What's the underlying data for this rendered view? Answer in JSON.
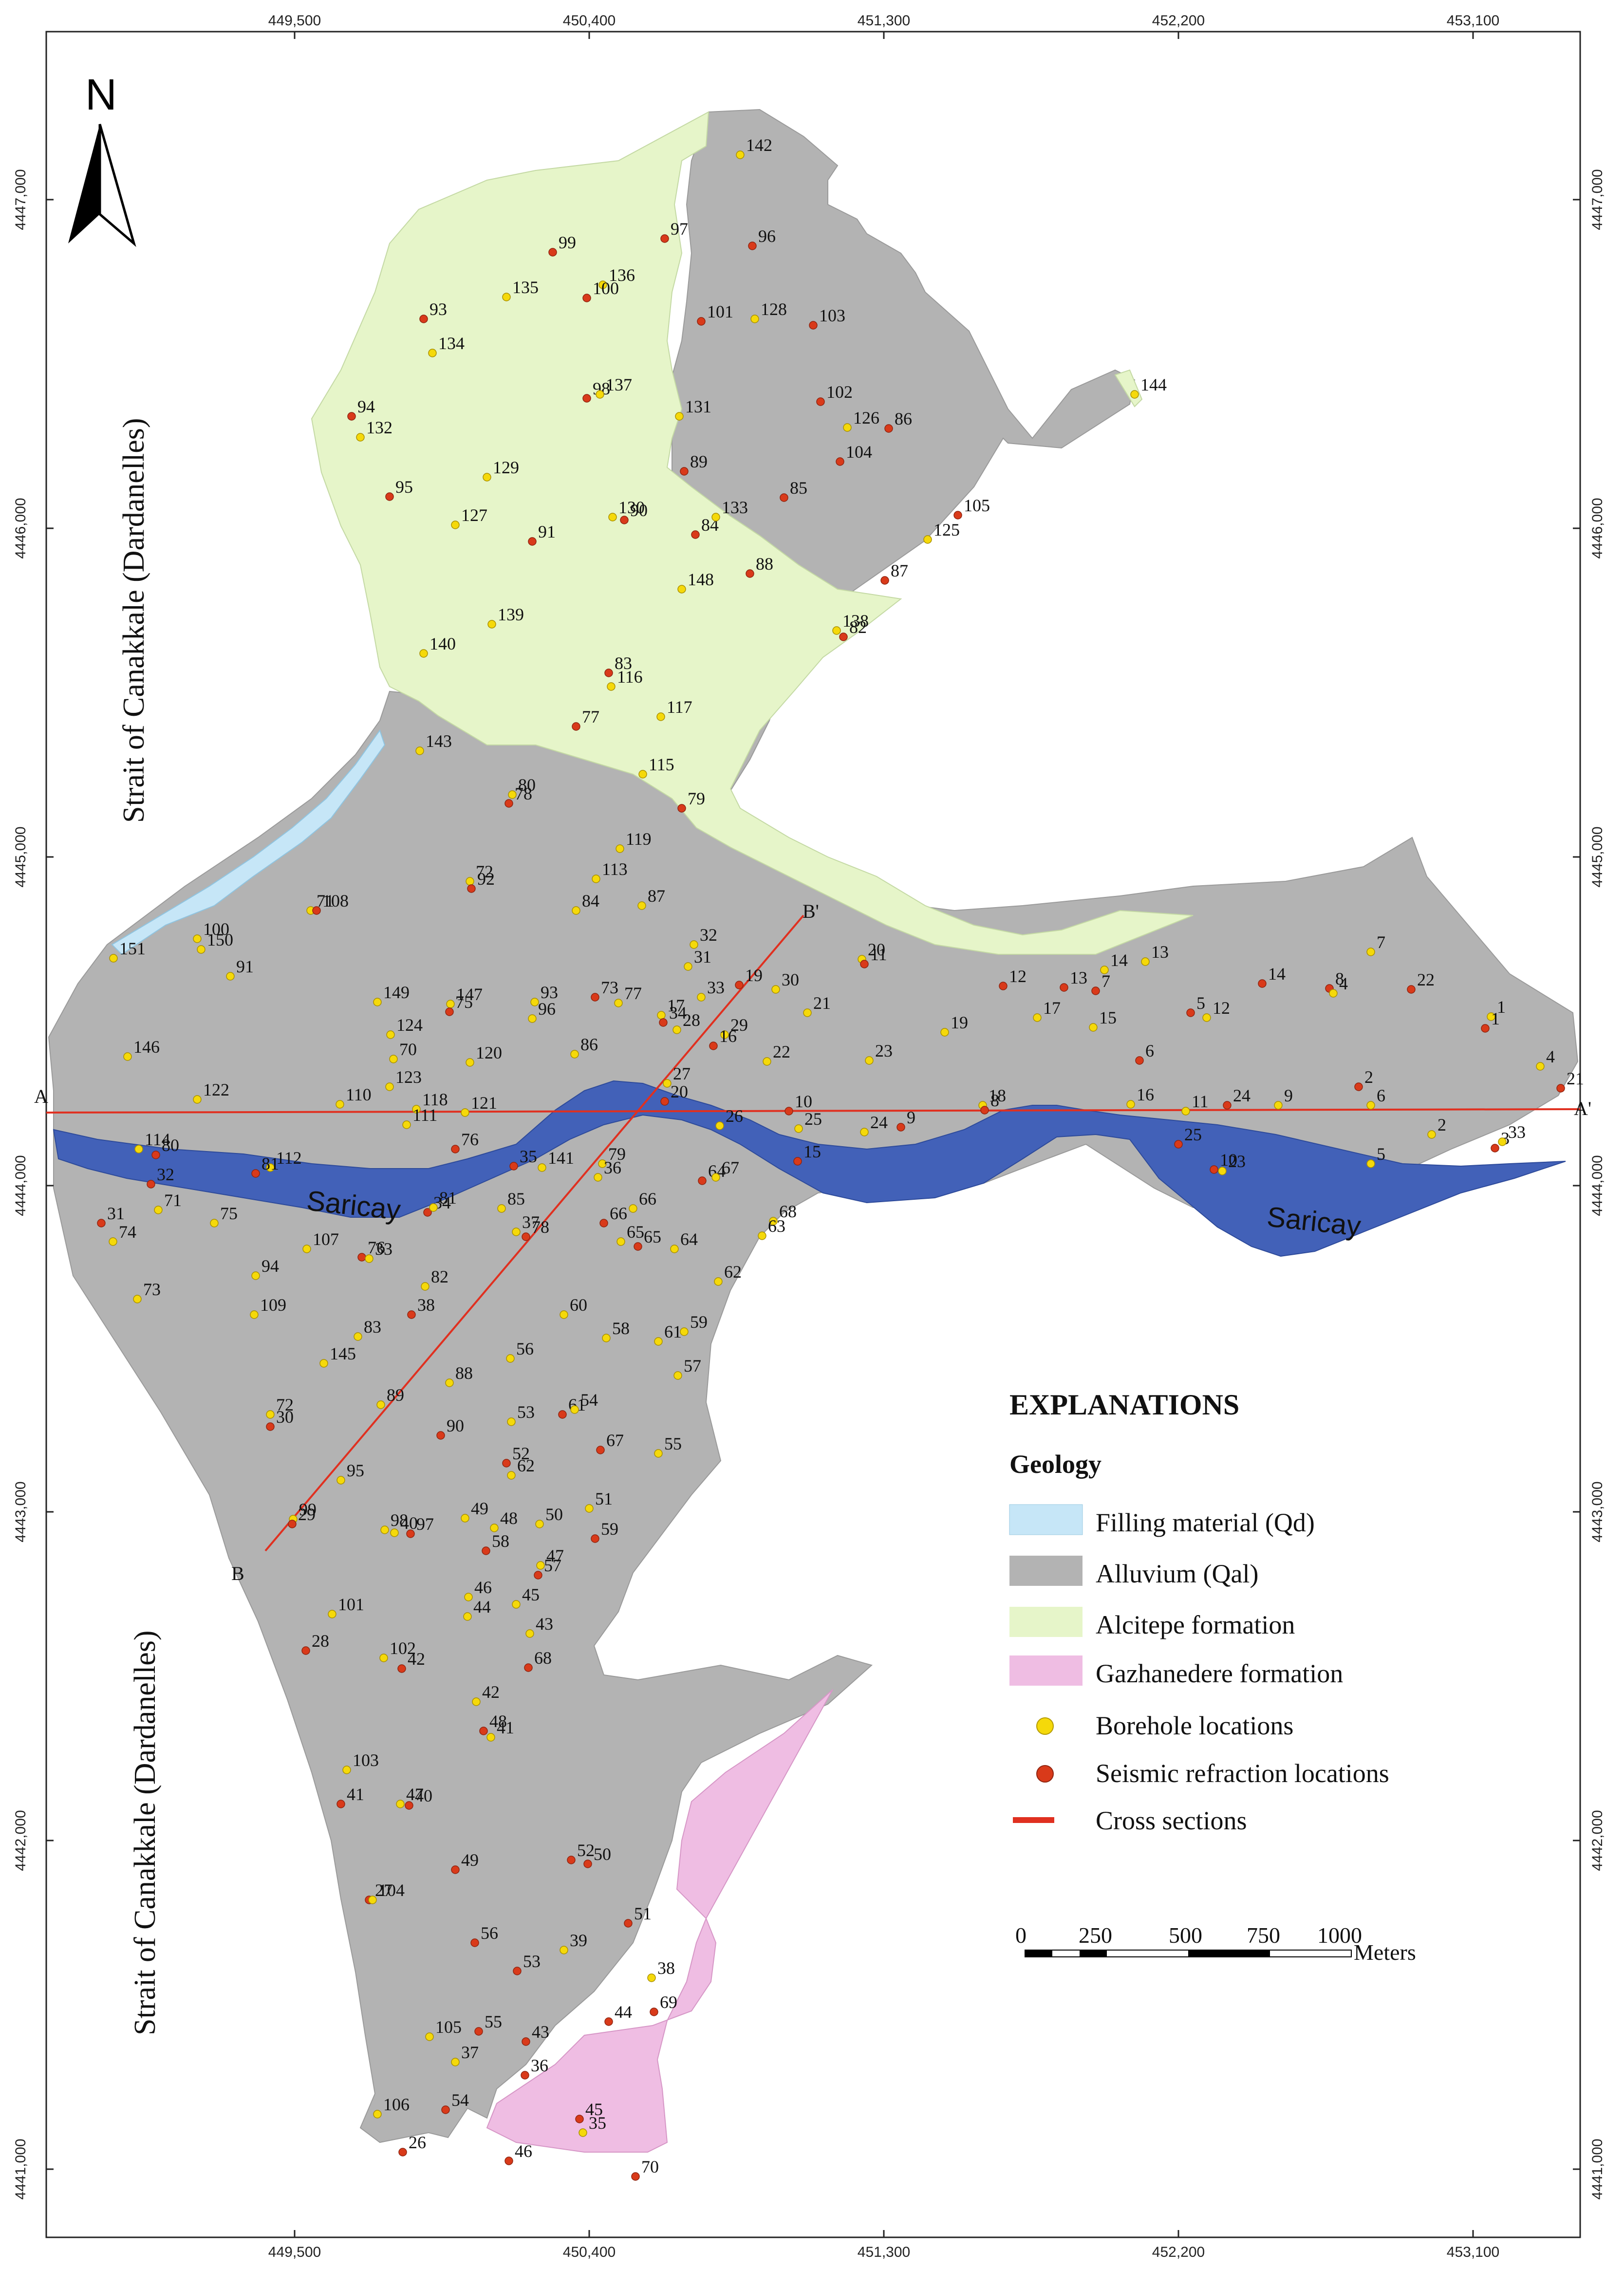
{
  "map": {
    "north_label": "N",
    "x_ticks": [
      "449,500",
      "450,400",
      "451,300",
      "452,200",
      "453,100"
    ],
    "y_ticks": [
      "4447,000",
      "4446,000",
      "4445,000",
      "4444,000",
      "4443,000",
      "4442,000",
      "4441,000"
    ],
    "sea_label_north": "Strait of Canakkale (Dardanelles)",
    "sea_label_south": "Strait of Canakkale (Dardanelles)",
    "river_label_west": "Saricay",
    "river_label_east": "Saricay",
    "sections": {
      "a": "A",
      "a_prime": "A'",
      "b": "B",
      "b_prime": "B'"
    },
    "colors": {
      "filling": "#c6e6f7",
      "alluvium": "#b3b3b3",
      "alcitepe": "#e6f5c9",
      "gazhanedere": "#efbde3",
      "river": "#4261b8",
      "borehole": "#f5d90a",
      "seismic": "#d93a1a",
      "section_line": "#e03020"
    },
    "legend": {
      "title": "EXPLANATIONS",
      "subtitle": "Geology",
      "items": [
        {
          "label": "Filling material (Qd)",
          "color": "#c6e6f7"
        },
        {
          "label": "Alluvium (Qal)",
          "color": "#b3b3b3"
        },
        {
          "label": "Alcitepe formation",
          "color": "#e6f5c9"
        },
        {
          "label": "Gazhanedere formation",
          "color": "#efbde3"
        }
      ],
      "symbols": [
        {
          "label": "Borehole locations",
          "color": "#f5d90a"
        },
        {
          "label": "Seismic refraction locations",
          "color": "#d93a1a"
        },
        {
          "label": "Cross sections",
          "color": "#e03020"
        }
      ]
    },
    "scale": {
      "ticks": [
        "0",
        "250",
        "500",
        "750",
        "1000"
      ],
      "unit": "Meters"
    }
  }
}
